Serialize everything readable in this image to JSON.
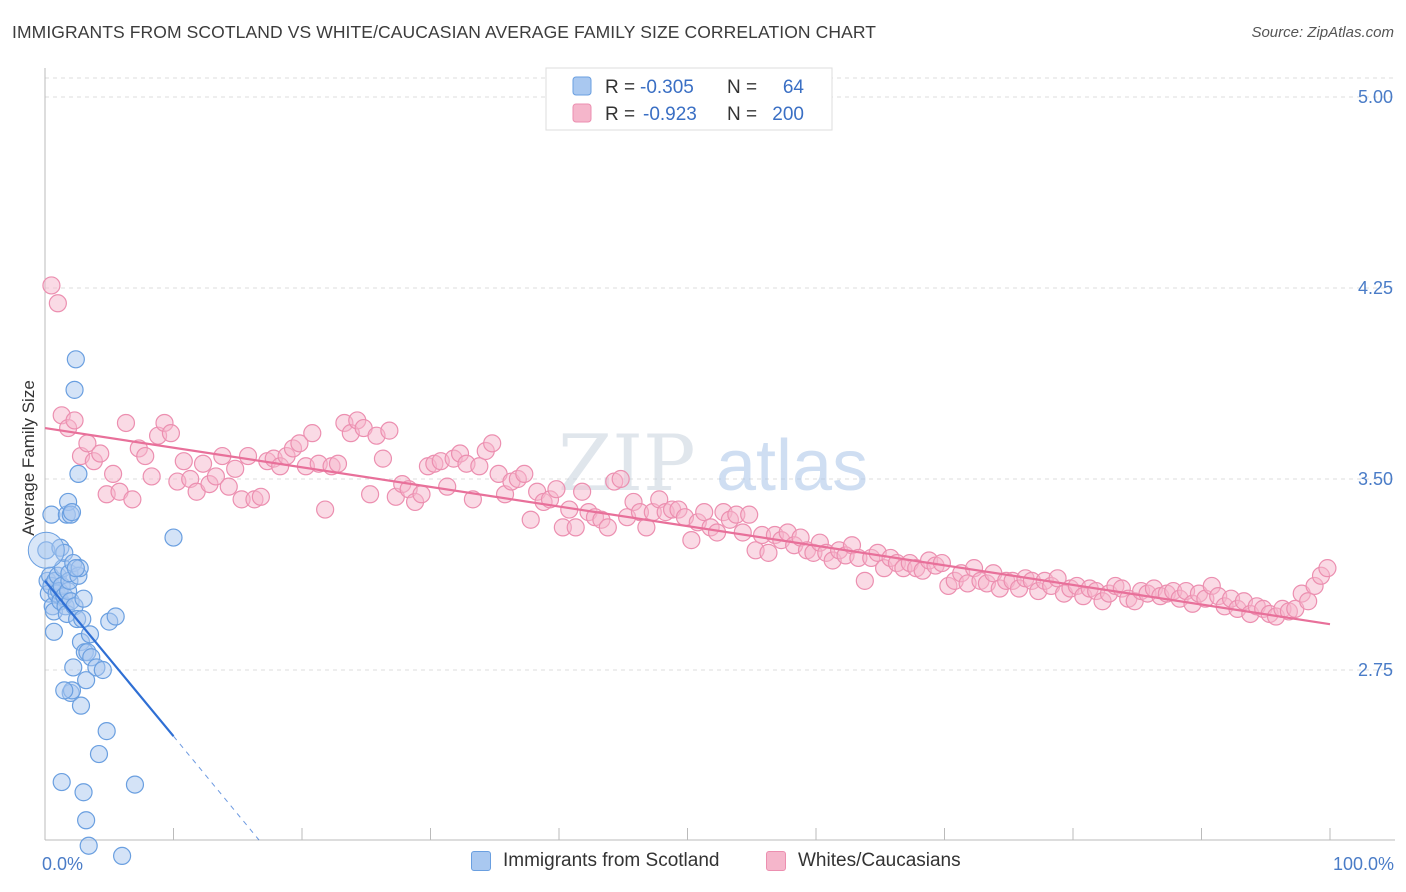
{
  "title": "IMMIGRANTS FROM SCOTLAND VS WHITE/CAUCASIAN AVERAGE FAMILY SIZE CORRELATION CHART",
  "source": "Source: ZipAtlas.com",
  "watermark": {
    "zip": "ZIP",
    "atlas": "atlas"
  },
  "colors": {
    "blue_fill": "#a9c8f0",
    "blue_stroke": "#6a9fe0",
    "blue_line": "#2f6fd4",
    "pink_fill": "#f5b6cb",
    "pink_stroke": "#ec8fb0",
    "pink_line": "#e8709a",
    "axis_text": "#4a7cc7",
    "grid": "#dddddd"
  },
  "legend_top": {
    "rows": [
      {
        "r_label": "R =",
        "r_value": "-0.305",
        "n_label": "N =",
        "n_value": "64",
        "color": "blue"
      },
      {
        "r_label": "R =",
        "r_value": "-0.923",
        "n_label": "N =",
        "n_value": "200",
        "color": "pink"
      }
    ]
  },
  "legend_bottom": [
    {
      "label": "Immigrants from Scotland",
      "color": "blue"
    },
    {
      "label": "Whites/Caucasians",
      "color": "pink"
    }
  ],
  "chart_data": {
    "type": "scatter",
    "ylabel": "Average Family Size",
    "xlabel": "",
    "x_tick_labels": [
      "0.0%",
      "100.0%"
    ],
    "y_tick_labels": [
      "2.75",
      "3.50",
      "4.25",
      "5.00"
    ],
    "y_ticks": [
      2.75,
      3.5,
      4.25,
      5.0
    ],
    "xlim": [
      0,
      100
    ],
    "ylim": [
      2.0,
      5.1
    ],
    "grid": true,
    "legend_position": "top-center",
    "series": [
      {
        "name": "Immigrants from Scotland",
        "color": "blue",
        "r": -0.305,
        "n": 64,
        "trend": {
          "x": [
            0,
            10
          ],
          "y": [
            3.1,
            2.49
          ]
        },
        "trend_extension": {
          "x": [
            10,
            18
          ],
          "y": [
            2.49,
            2.0
          ]
        },
        "points": [
          [
            0.1,
            3.22
          ],
          [
            0.2,
            3.1
          ],
          [
            0.3,
            3.05
          ],
          [
            0.4,
            3.12
          ],
          [
            0.5,
            3.08
          ],
          [
            0.6,
            3.0
          ],
          [
            0.7,
            2.98
          ],
          [
            0.8,
            3.1
          ],
          [
            0.9,
            3.05
          ],
          [
            1.0,
            3.12
          ],
          [
            1.1,
            3.06
          ],
          [
            1.2,
            3.02
          ],
          [
            1.3,
            3.08
          ],
          [
            1.4,
            3.15
          ],
          [
            1.5,
            3.04
          ],
          [
            1.6,
            3.0
          ],
          [
            1.7,
            2.97
          ],
          [
            1.8,
            3.06
          ],
          [
            1.9,
            3.1
          ],
          [
            2.0,
            3.02
          ],
          [
            0.5,
            3.36
          ],
          [
            0.7,
            2.9
          ],
          [
            1.2,
            3.23
          ],
          [
            1.5,
            3.21
          ],
          [
            1.7,
            3.36
          ],
          [
            1.8,
            3.41
          ],
          [
            1.9,
            3.13
          ],
          [
            2.0,
            3.36
          ],
          [
            2.1,
            3.37
          ],
          [
            2.2,
            3.17
          ],
          [
            2.3,
            3.0
          ],
          [
            2.5,
            2.95
          ],
          [
            2.6,
            3.12
          ],
          [
            2.7,
            3.15
          ],
          [
            2.8,
            2.86
          ],
          [
            2.9,
            2.95
          ],
          [
            3.0,
            3.03
          ],
          [
            3.1,
            2.82
          ],
          [
            3.2,
            2.71
          ],
          [
            3.3,
            2.82
          ],
          [
            2.0,
            2.66
          ],
          [
            2.1,
            2.67
          ],
          [
            2.2,
            2.76
          ],
          [
            2.3,
            3.85
          ],
          [
            2.4,
            3.97
          ],
          [
            2.6,
            3.52
          ],
          [
            2.8,
            2.61
          ],
          [
            3.0,
            2.27
          ],
          [
            3.2,
            2.16
          ],
          [
            3.4,
            2.06
          ],
          [
            1.3,
            2.31
          ],
          [
            1.5,
            2.67
          ],
          [
            3.5,
            2.89
          ],
          [
            3.6,
            2.8
          ],
          [
            4.0,
            2.76
          ],
          [
            4.2,
            2.42
          ],
          [
            4.5,
            2.75
          ],
          [
            4.8,
            2.51
          ],
          [
            5.0,
            2.94
          ],
          [
            5.5,
            2.96
          ],
          [
            6.0,
            2.02
          ],
          [
            7.0,
            2.3
          ],
          [
            10.0,
            3.27
          ],
          [
            2.4,
            3.15
          ]
        ]
      },
      {
        "name": "Whites/Caucasians",
        "color": "pink",
        "r": -0.923,
        "n": 200,
        "trend": {
          "x": [
            0,
            100
          ],
          "y": [
            3.7,
            2.93
          ]
        },
        "points": [
          [
            0.5,
            4.26
          ],
          [
            1.0,
            4.19
          ],
          [
            1.3,
            3.75
          ],
          [
            1.8,
            3.7
          ],
          [
            2.3,
            3.73
          ],
          [
            2.8,
            3.59
          ],
          [
            3.3,
            3.64
          ],
          [
            3.8,
            3.57
          ],
          [
            4.3,
            3.6
          ],
          [
            4.8,
            3.44
          ],
          [
            5.3,
            3.52
          ],
          [
            5.8,
            3.45
          ],
          [
            6.3,
            3.72
          ],
          [
            6.8,
            3.42
          ],
          [
            7.3,
            3.62
          ],
          [
            7.8,
            3.59
          ],
          [
            8.3,
            3.51
          ],
          [
            8.8,
            3.67
          ],
          [
            9.3,
            3.72
          ],
          [
            9.8,
            3.68
          ],
          [
            10.3,
            3.49
          ],
          [
            10.8,
            3.57
          ],
          [
            11.3,
            3.5
          ],
          [
            11.8,
            3.45
          ],
          [
            12.3,
            3.56
          ],
          [
            12.8,
            3.48
          ],
          [
            13.3,
            3.51
          ],
          [
            13.8,
            3.59
          ],
          [
            14.3,
            3.47
          ],
          [
            14.8,
            3.54
          ],
          [
            15.3,
            3.42
          ],
          [
            15.8,
            3.59
          ],
          [
            16.3,
            3.42
          ],
          [
            16.8,
            3.43
          ],
          [
            17.3,
            3.57
          ],
          [
            17.8,
            3.58
          ],
          [
            18.3,
            3.55
          ],
          [
            18.8,
            3.59
          ],
          [
            19.3,
            3.62
          ],
          [
            19.8,
            3.64
          ],
          [
            20.3,
            3.55
          ],
          [
            20.8,
            3.68
          ],
          [
            21.3,
            3.56
          ],
          [
            21.8,
            3.38
          ],
          [
            22.3,
            3.55
          ],
          [
            22.8,
            3.56
          ],
          [
            23.3,
            3.72
          ],
          [
            23.8,
            3.68
          ],
          [
            24.3,
            3.73
          ],
          [
            24.8,
            3.7
          ],
          [
            25.3,
            3.44
          ],
          [
            25.8,
            3.67
          ],
          [
            26.3,
            3.58
          ],
          [
            26.8,
            3.69
          ],
          [
            27.3,
            3.43
          ],
          [
            27.8,
            3.48
          ],
          [
            28.3,
            3.46
          ],
          [
            28.8,
            3.41
          ],
          [
            29.3,
            3.44
          ],
          [
            29.8,
            3.55
          ],
          [
            30.3,
            3.56
          ],
          [
            30.8,
            3.57
          ],
          [
            31.3,
            3.47
          ],
          [
            31.8,
            3.58
          ],
          [
            32.3,
            3.6
          ],
          [
            32.8,
            3.56
          ],
          [
            33.3,
            3.42
          ],
          [
            33.8,
            3.55
          ],
          [
            34.3,
            3.61
          ],
          [
            34.8,
            3.64
          ],
          [
            35.3,
            3.52
          ],
          [
            35.8,
            3.44
          ],
          [
            36.3,
            3.49
          ],
          [
            36.8,
            3.5
          ],
          [
            37.3,
            3.52
          ],
          [
            37.8,
            3.34
          ],
          [
            38.3,
            3.45
          ],
          [
            38.8,
            3.41
          ],
          [
            39.3,
            3.42
          ],
          [
            39.8,
            3.46
          ],
          [
            40.3,
            3.31
          ],
          [
            40.8,
            3.38
          ],
          [
            41.3,
            3.31
          ],
          [
            41.8,
            3.45
          ],
          [
            42.3,
            3.37
          ],
          [
            42.8,
            3.35
          ],
          [
            43.3,
            3.34
          ],
          [
            43.8,
            3.31
          ],
          [
            44.3,
            3.49
          ],
          [
            44.8,
            3.5
          ],
          [
            45.3,
            3.35
          ],
          [
            45.8,
            3.41
          ],
          [
            46.3,
            3.37
          ],
          [
            46.8,
            3.31
          ],
          [
            47.3,
            3.37
          ],
          [
            47.8,
            3.42
          ],
          [
            48.3,
            3.37
          ],
          [
            48.8,
            3.38
          ],
          [
            49.3,
            3.38
          ],
          [
            49.8,
            3.35
          ],
          [
            50.3,
            3.26
          ],
          [
            50.8,
            3.33
          ],
          [
            51.3,
            3.37
          ],
          [
            51.8,
            3.31
          ],
          [
            52.3,
            3.29
          ],
          [
            52.8,
            3.37
          ],
          [
            53.3,
            3.34
          ],
          [
            53.8,
            3.36
          ],
          [
            54.3,
            3.29
          ],
          [
            54.8,
            3.36
          ],
          [
            55.3,
            3.22
          ],
          [
            55.8,
            3.28
          ],
          [
            56.3,
            3.21
          ],
          [
            56.8,
            3.28
          ],
          [
            57.3,
            3.26
          ],
          [
            57.8,
            3.29
          ],
          [
            58.3,
            3.24
          ],
          [
            58.8,
            3.27
          ],
          [
            59.3,
            3.22
          ],
          [
            59.8,
            3.21
          ],
          [
            60.3,
            3.25
          ],
          [
            60.8,
            3.21
          ],
          [
            61.3,
            3.18
          ],
          [
            61.8,
            3.22
          ],
          [
            62.3,
            3.2
          ],
          [
            62.8,
            3.24
          ],
          [
            63.3,
            3.19
          ],
          [
            63.8,
            3.1
          ],
          [
            64.3,
            3.19
          ],
          [
            64.8,
            3.21
          ],
          [
            65.3,
            3.15
          ],
          [
            65.8,
            3.19
          ],
          [
            66.3,
            3.17
          ],
          [
            66.8,
            3.15
          ],
          [
            67.3,
            3.17
          ],
          [
            67.8,
            3.15
          ],
          [
            68.3,
            3.14
          ],
          [
            68.8,
            3.18
          ],
          [
            69.3,
            3.16
          ],
          [
            69.8,
            3.17
          ],
          [
            70.3,
            3.08
          ],
          [
            70.8,
            3.1
          ],
          [
            71.3,
            3.13
          ],
          [
            71.8,
            3.09
          ],
          [
            72.3,
            3.15
          ],
          [
            72.8,
            3.1
          ],
          [
            73.3,
            3.09
          ],
          [
            73.8,
            3.13
          ],
          [
            74.3,
            3.07
          ],
          [
            74.8,
            3.1
          ],
          [
            75.3,
            3.1
          ],
          [
            75.8,
            3.07
          ],
          [
            76.3,
            3.11
          ],
          [
            76.8,
            3.1
          ],
          [
            77.3,
            3.06
          ],
          [
            77.8,
            3.1
          ],
          [
            78.3,
            3.08
          ],
          [
            78.8,
            3.11
          ],
          [
            79.3,
            3.05
          ],
          [
            79.8,
            3.07
          ],
          [
            80.3,
            3.08
          ],
          [
            80.8,
            3.04
          ],
          [
            81.3,
            3.07
          ],
          [
            81.8,
            3.06
          ],
          [
            82.3,
            3.02
          ],
          [
            82.8,
            3.05
          ],
          [
            83.3,
            3.08
          ],
          [
            83.8,
            3.07
          ],
          [
            84.3,
            3.03
          ],
          [
            84.8,
            3.02
          ],
          [
            85.3,
            3.06
          ],
          [
            85.8,
            3.05
          ],
          [
            86.3,
            3.07
          ],
          [
            86.8,
            3.04
          ],
          [
            87.3,
            3.05
          ],
          [
            87.8,
            3.06
          ],
          [
            88.3,
            3.03
          ],
          [
            88.8,
            3.06
          ],
          [
            89.3,
            3.01
          ],
          [
            89.8,
            3.05
          ],
          [
            90.3,
            3.03
          ],
          [
            90.8,
            3.08
          ],
          [
            91.3,
            3.04
          ],
          [
            91.8,
            3.0
          ],
          [
            92.3,
            3.03
          ],
          [
            92.8,
            2.99
          ],
          [
            93.3,
            3.02
          ],
          [
            93.8,
            2.97
          ],
          [
            94.3,
            3.0
          ],
          [
            94.8,
            2.99
          ],
          [
            95.3,
            2.97
          ],
          [
            95.8,
            2.96
          ],
          [
            96.3,
            2.99
          ],
          [
            96.8,
            2.98
          ],
          [
            97.3,
            2.99
          ],
          [
            97.8,
            3.05
          ],
          [
            98.3,
            3.02
          ],
          [
            98.8,
            3.08
          ],
          [
            99.3,
            3.12
          ],
          [
            99.8,
            3.15
          ]
        ]
      }
    ]
  }
}
